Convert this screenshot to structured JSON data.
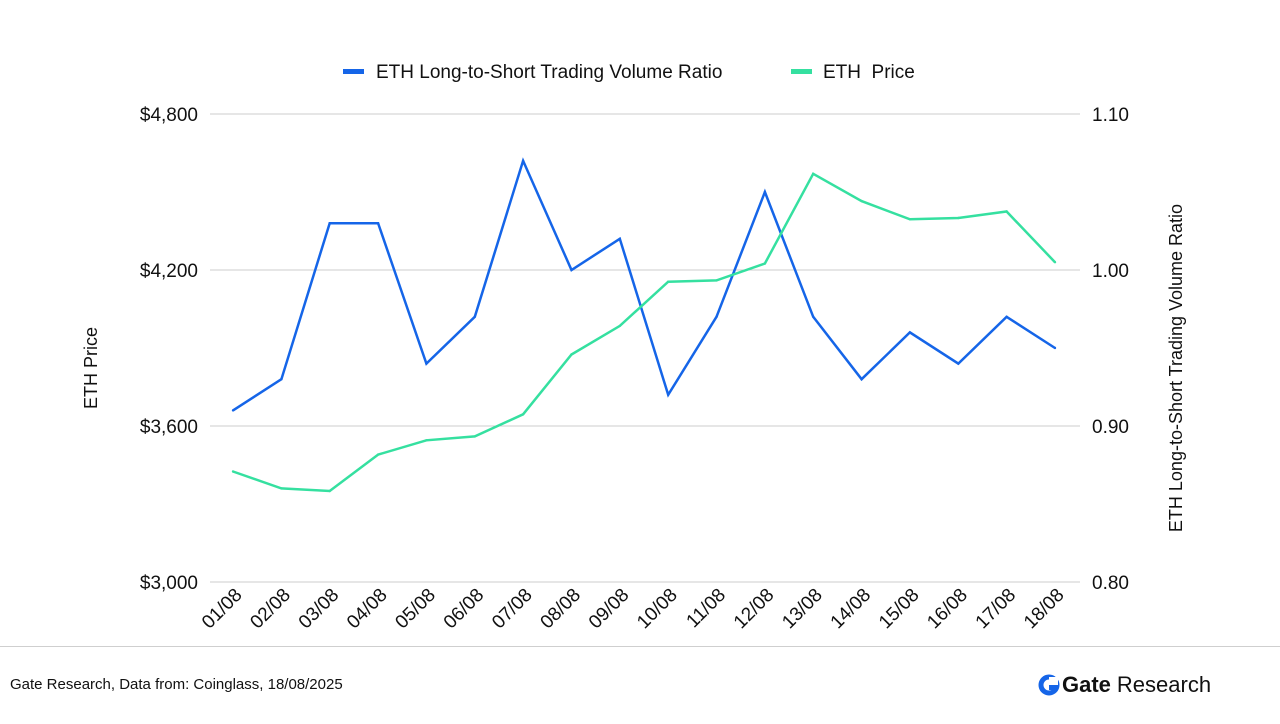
{
  "chart_data": {
    "type": "line",
    "categories": [
      "01/08",
      "02/08",
      "03/08",
      "04/08",
      "05/08",
      "06/08",
      "07/08",
      "08/08",
      "09/08",
      "10/08",
      "11/08",
      "12/08",
      "13/08",
      "14/08",
      "15/08",
      "16/08",
      "17/08",
      "18/08"
    ],
    "series": [
      {
        "name": "ETH Long-to-Short Trading Volume Ratio",
        "axis": "right",
        "color": "#1565e8",
        "values": [
          0.91,
          0.93,
          1.03,
          1.03,
          0.94,
          0.97,
          1.07,
          1.0,
          1.02,
          0.92,
          0.97,
          1.05,
          0.97,
          0.93,
          0.96,
          0.94,
          0.97,
          0.95
        ]
      },
      {
        "name": "ETH  Price",
        "axis": "left",
        "color": "#35e0a0",
        "values": [
          3425,
          3360,
          3350,
          3490,
          3545,
          3560,
          3645,
          3875,
          3985,
          4155,
          4160,
          4225,
          4570,
          4465,
          4395,
          4400,
          4425,
          4230
        ]
      }
    ],
    "y_left": {
      "label": "ETH Price",
      "ylim": [
        3000,
        4800
      ],
      "ticks": [
        "$3,000",
        "$3,600",
        "$4,200",
        "$4,800"
      ],
      "tick_values": [
        3000,
        3600,
        4200,
        4800
      ]
    },
    "y_right": {
      "label": "ETH Long-to-Short Trading Volume Ratio",
      "ylim": [
        0.8,
        1.1
      ],
      "ticks": [
        "0.80",
        "0.90",
        "1.00",
        "1.10"
      ],
      "tick_values": [
        0.8,
        0.9,
        1.0,
        1.1
      ]
    },
    "grid": true,
    "legend": "top-center"
  },
  "footer": {
    "source": "Gate Research, Data from: Coinglass, 18/08/2025",
    "brand_name": "Gate",
    "brand_suffix": "Research"
  },
  "colors": {
    "ratio": "#1565e8",
    "price": "#35e0a0",
    "grid": "#cccccc",
    "brand": "#1565e8"
  },
  "icons": {
    "brand_logo": "gate-logo-icon"
  }
}
